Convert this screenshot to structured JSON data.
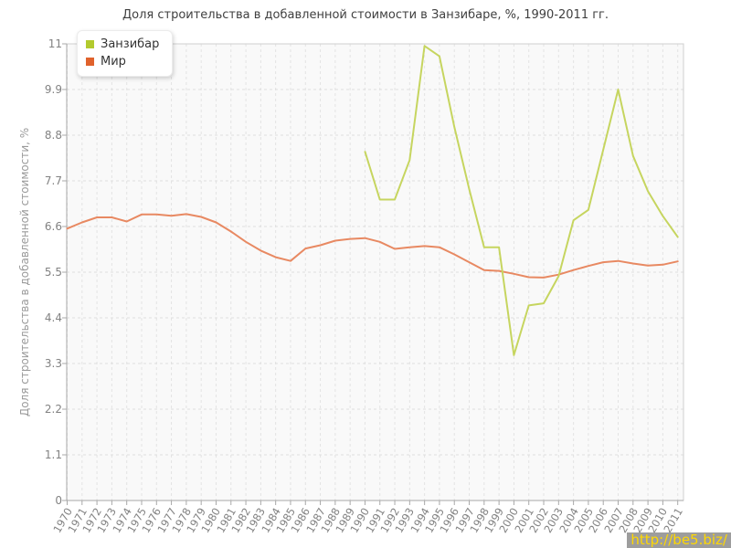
{
  "chart_data": {
    "type": "line",
    "title": "Доля строительства в добавленной стоимости в Занзибаре, %, 1990-2011 гг.",
    "ylabel": "Доля строительства в добавленной стоимости, %",
    "xlabel": "",
    "ylim": [
      0,
      11
    ],
    "y_ticks": [
      "0",
      "1.1",
      "2.2",
      "3.3",
      "4.4",
      "5.5",
      "6.6",
      "7.7",
      "8.8",
      "9.9",
      "11"
    ],
    "grid": true,
    "legend_position": "top-left",
    "x": [
      1970,
      1971,
      1972,
      1973,
      1974,
      1975,
      1976,
      1977,
      1978,
      1979,
      1980,
      1981,
      1982,
      1983,
      1984,
      1985,
      1986,
      1987,
      1988,
      1989,
      1990,
      1991,
      1992,
      1993,
      1994,
      1995,
      1996,
      1997,
      1998,
      1999,
      2000,
      2001,
      2002,
      2003,
      2004,
      2005,
      2006,
      2007,
      2008,
      2009,
      2010,
      2011
    ],
    "series": [
      {
        "name": "Занзибар",
        "color": "#b2ca2e",
        "line_color": "#c6d55f",
        "values": [
          null,
          null,
          null,
          null,
          null,
          null,
          null,
          null,
          null,
          null,
          null,
          null,
          null,
          null,
          null,
          null,
          null,
          null,
          null,
          null,
          8.4,
          7.25,
          7.25,
          8.2,
          10.95,
          10.7,
          9.0,
          7.5,
          6.1,
          6.1,
          3.5,
          4.7,
          4.75,
          5.4,
          6.75,
          7.0,
          8.45,
          9.9,
          8.3,
          7.45,
          6.85,
          6.35
        ]
      },
      {
        "name": "Мир",
        "color": "#e0622c",
        "line_color": "#e88962",
        "values": [
          6.55,
          6.7,
          6.82,
          6.82,
          6.72,
          6.89,
          6.89,
          6.86,
          6.9,
          6.83,
          6.7,
          6.48,
          6.23,
          6.02,
          5.86,
          5.77,
          6.07,
          6.15,
          6.26,
          6.3,
          6.32,
          6.23,
          6.06,
          6.1,
          6.13,
          6.1,
          5.93,
          5.74,
          5.55,
          5.53,
          5.46,
          5.38,
          5.37,
          5.44,
          5.55,
          5.65,
          5.74,
          5.77,
          5.71,
          5.66,
          5.68,
          5.76
        ]
      }
    ]
  },
  "watermark": {
    "text": "http://be5.biz/",
    "bg": "#9d9d9d",
    "color": "#ffd800"
  }
}
